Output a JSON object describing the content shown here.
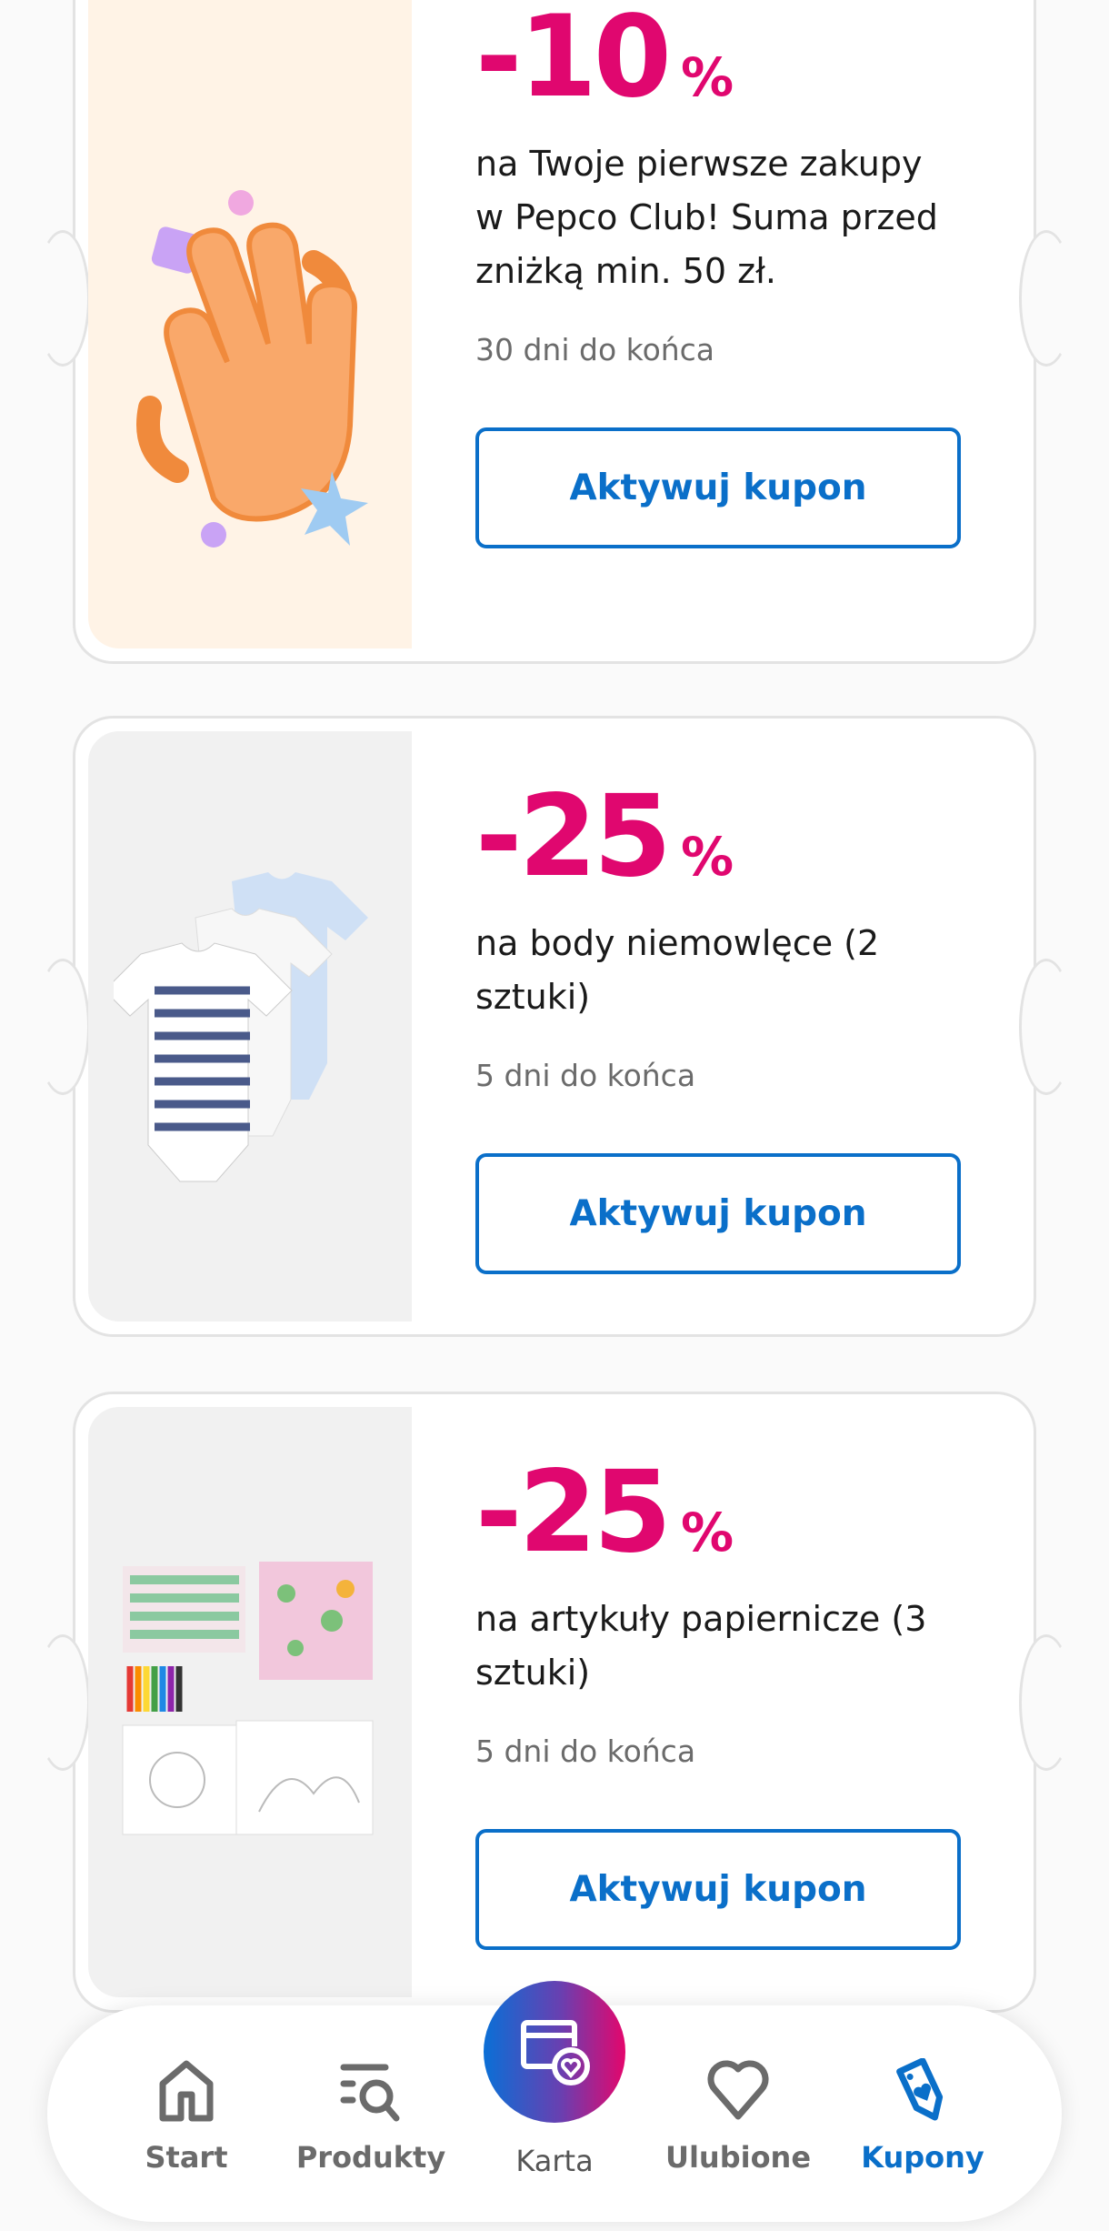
{
  "coupons": [
    {
      "discount": "-10",
      "percent": "%",
      "description": "na Twoje pierwsze zakupy w Pepco Club! Suma przed zniżką min. 50 zł.",
      "days_left": "30 dni do końca",
      "button": "Aktywuj kupon",
      "image": "waving-hand-illustration",
      "panel_color": "#fff3e6"
    },
    {
      "discount": "-25",
      "percent": "%",
      "description": "na body niemowlęce (2 sztuki)",
      "days_left": "5 dni do końca",
      "button": "Aktywuj kupon",
      "image": "baby-bodysuits-photo",
      "panel_color": "#f1f1f1"
    },
    {
      "discount": "-25",
      "percent": "%",
      "description": "na artykuły papiernicze (3 sztuki)",
      "days_left": "5 dni do końca",
      "button": "Aktywuj kupon",
      "image": "stationery-set-photo",
      "panel_color": "#f1f1f1"
    }
  ],
  "nav": {
    "items": [
      {
        "label": "Start",
        "icon": "home-icon"
      },
      {
        "label": "Produkty",
        "icon": "product-search-icon"
      },
      {
        "label": "Karta",
        "icon": "loyalty-card-icon"
      },
      {
        "label": "Ulubione",
        "icon": "heart-icon"
      },
      {
        "label": "Kupony",
        "icon": "coupon-tag-icon",
        "active": true
      }
    ]
  },
  "colors": {
    "discount": "#e0076f",
    "accent": "#0a6fc9",
    "muted": "#6b6b6b"
  }
}
